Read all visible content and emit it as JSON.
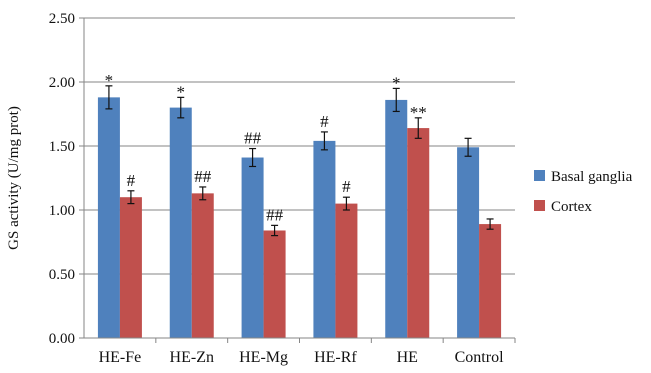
{
  "chart_data": {
    "type": "bar",
    "title": "",
    "xlabel": "",
    "ylabel": "GS activity (U/mg prot)",
    "ylim": [
      0,
      2.5
    ],
    "yticks": [
      "0.00",
      "0.50",
      "1.00",
      "1.50",
      "2.00",
      "2.50"
    ],
    "grid": "horizontal",
    "legend_position": "right",
    "categories": [
      "HE-Fe",
      "HE-Zn",
      "HE-Mg",
      "HE-Rf",
      "HE",
      "Control"
    ],
    "series": [
      {
        "name": "Basal ganglia",
        "color": "#4f81bd",
        "values": [
          1.88,
          1.8,
          1.41,
          1.54,
          1.86,
          1.49
        ],
        "errors": [
          0.09,
          0.08,
          0.07,
          0.07,
          0.09,
          0.07
        ],
        "annotations": [
          "*",
          "*",
          "##",
          "#",
          "*",
          ""
        ]
      },
      {
        "name": "Cortex",
        "color": "#c0504d",
        "values": [
          1.1,
          1.13,
          0.84,
          1.05,
          1.64,
          0.89
        ],
        "errors": [
          0.05,
          0.05,
          0.04,
          0.05,
          0.08,
          0.04
        ],
        "annotations": [
          "#",
          "##",
          "##",
          "#",
          "**",
          ""
        ]
      }
    ]
  }
}
